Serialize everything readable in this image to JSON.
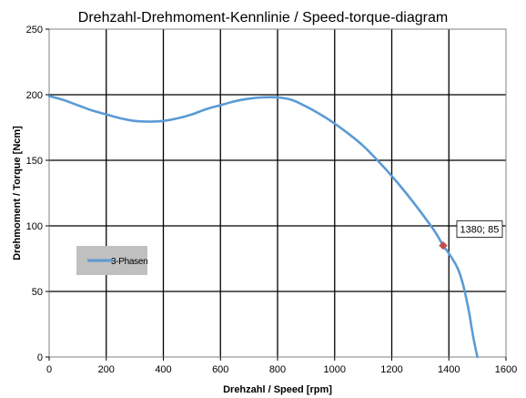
{
  "chart_data": {
    "type": "line",
    "title": "Drehzahl-Drehmoment-Kennlinie / Speed-torque-diagram",
    "xlabel": "Drehzahl / Speed [rpm]",
    "ylabel": "Drehmoment / Torque [Ncm]",
    "xlim": [
      0,
      1600
    ],
    "ylim": [
      0,
      250
    ],
    "xticks": [
      0,
      200,
      400,
      600,
      800,
      1000,
      1200,
      1400,
      1600
    ],
    "yticks": [
      0,
      50,
      100,
      150,
      200,
      250
    ],
    "grid": true,
    "legend_position": "left",
    "series": [
      {
        "name": "3-Phasen",
        "color": "#5b9bd5",
        "x": [
          0,
          50,
          100,
          150,
          200,
          250,
          300,
          350,
          400,
          450,
          500,
          550,
          600,
          650,
          700,
          750,
          800,
          850,
          900,
          950,
          1000,
          1050,
          1100,
          1150,
          1200,
          1250,
          1300,
          1350,
          1380,
          1400,
          1430,
          1450,
          1470,
          1480,
          1490,
          1500
        ],
        "y": [
          199,
          196,
          192,
          188,
          185,
          182,
          180,
          179.5,
          180,
          182,
          185,
          189,
          192,
          195,
          197,
          198,
          198,
          196,
          191,
          185,
          178,
          170,
          161,
          150,
          138,
          125,
          111,
          96,
          85,
          79,
          68,
          55,
          35,
          22,
          10,
          0
        ]
      }
    ],
    "annotations": [
      {
        "text": "1380; 85",
        "x": 1380,
        "y": 85,
        "marker_color": "#c0504d"
      }
    ]
  }
}
